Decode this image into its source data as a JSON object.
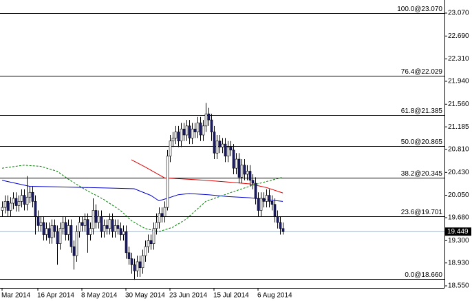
{
  "chart_data": {
    "type": "candlestick",
    "categories": [
      "Mar 2014",
      null,
      null,
      null,
      null,
      null,
      null,
      null,
      null,
      null,
      null,
      null,
      null,
      "16 Apr 2014",
      null,
      null,
      null,
      null,
      null,
      null,
      null,
      null,
      null,
      null,
      null,
      null,
      null,
      null,
      null,
      "8 May 2014",
      null,
      null,
      null,
      null,
      null,
      null,
      null,
      null,
      null,
      null,
      null,
      null,
      null,
      null,
      null,
      "30 May 2014",
      null,
      null,
      null,
      null,
      null,
      null,
      null,
      null,
      null,
      null,
      null,
      null,
      null,
      null,
      null,
      "23 Jun 2014",
      null,
      null,
      null,
      null,
      null,
      null,
      null,
      null,
      null,
      null,
      null,
      null,
      null,
      null,
      null,
      "15 Jul 2014",
      null,
      null,
      null,
      null,
      null,
      null,
      null,
      null,
      null,
      null,
      null,
      null,
      null,
      null,
      null,
      "6 Aug 2014",
      null,
      null,
      null,
      null,
      null,
      null,
      null,
      null,
      null
    ],
    "open": [
      19.8,
      19.85,
      19.95,
      19.8,
      19.92,
      20.0,
      19.88,
      19.95,
      20.05,
      19.9,
      20.02,
      20.1,
      19.95,
      19.7,
      19.55,
      19.6,
      19.4,
      19.5,
      19.35,
      19.55,
      19.45,
      19.25,
      19.5,
      19.6,
      19.4,
      19.55,
      19.2,
      19.05,
      19.45,
      19.6,
      19.55,
      19.65,
      19.4,
      19.5,
      19.8,
      19.6,
      19.7,
      19.45,
      19.55,
      19.5,
      19.65,
      19.45,
      19.55,
      19.5,
      19.4,
      19.45,
      19.1,
      19.0,
      18.9,
      18.8,
      18.95,
      18.85,
      19.05,
      19.2,
      19.3,
      19.25,
      19.5,
      19.6,
      19.75,
      19.7,
      19.85,
      20.7,
      20.95,
      21.0,
      21.1,
      20.95,
      21.15,
      21.05,
      21.2,
      21.0,
      21.15,
      21.1,
      21.25,
      21.05,
      21.2,
      21.4,
      21.3,
      21.1,
      20.75,
      20.95,
      20.85,
      20.9,
      20.7,
      20.85,
      20.8,
      20.5,
      20.65,
      20.35,
      20.55,
      20.4,
      20.45,
      20.3,
      20.25,
      20.0,
      19.8,
      20.0,
      19.95,
      20.05,
      19.95,
      19.9,
      19.7,
      19.6,
      19.5
    ],
    "high": [
      19.95,
      20.05,
      20.05,
      20.02,
      20.1,
      20.1,
      20.05,
      20.15,
      20.15,
      20.37,
      20.2,
      20.2,
      20.05,
      19.8,
      19.7,
      19.7,
      19.6,
      19.6,
      19.65,
      19.65,
      19.55,
      19.6,
      19.7,
      19.7,
      19.65,
      19.65,
      19.3,
      19.55,
      19.7,
      19.7,
      19.75,
      19.75,
      19.6,
      20.0,
      19.9,
      19.8,
      19.8,
      19.65,
      19.65,
      19.75,
      19.75,
      19.65,
      19.65,
      19.6,
      19.55,
      19.55,
      19.2,
      19.1,
      19.0,
      19.05,
      19.05,
      19.15,
      19.3,
      19.4,
      19.4,
      19.6,
      19.75,
      19.85,
      19.85,
      19.95,
      20.8,
      21.05,
      21.1,
      21.2,
      21.2,
      21.25,
      21.25,
      21.3,
      21.3,
      21.25,
      21.25,
      21.35,
      21.35,
      21.3,
      21.58,
      21.5,
      21.4,
      21.2,
      21.05,
      21.05,
      21.0,
      21.0,
      20.95,
      20.95,
      20.9,
      20.75,
      20.75,
      20.65,
      20.65,
      20.55,
      20.55,
      20.4,
      20.35,
      20.1,
      20.1,
      20.1,
      20.15,
      20.15,
      20.05,
      20.0,
      19.8,
      19.7,
      19.6
    ],
    "low": [
      19.7,
      19.75,
      19.7,
      19.7,
      19.82,
      19.78,
      19.78,
      19.85,
      19.8,
      19.8,
      19.92,
      19.85,
      19.4,
      19.45,
      19.45,
      19.3,
      19.3,
      19.25,
      19.25,
      19.35,
      18.9,
      19.15,
      19.4,
      19.3,
      19.3,
      19.1,
      18.82,
      18.95,
      19.35,
      19.45,
      19.45,
      19.1,
      19.3,
      19.4,
      19.5,
      19.5,
      19.35,
      19.35,
      19.4,
      19.4,
      19.35,
      19.35,
      19.4,
      19.3,
      19.3,
      19.0,
      18.9,
      18.75,
      18.65,
      18.7,
      18.7,
      18.75,
      18.95,
      19.1,
      19.15,
      19.15,
      19.4,
      19.5,
      19.6,
      19.6,
      19.8,
      20.6,
      20.85,
      20.9,
      20.85,
      20.85,
      20.95,
      20.95,
      20.9,
      20.9,
      21.0,
      21.0,
      20.95,
      20.95,
      21.1,
      21.2,
      20.95,
      20.65,
      20.65,
      20.75,
      20.75,
      20.6,
      20.6,
      20.7,
      20.4,
      20.4,
      20.25,
      20.25,
      20.3,
      20.3,
      20.2,
      20.15,
      19.9,
      19.7,
      19.7,
      19.85,
      19.85,
      19.85,
      19.8,
      19.6,
      19.5,
      19.4,
      19.4
    ],
    "close": [
      19.85,
      19.95,
      19.8,
      19.92,
      20.0,
      19.88,
      19.95,
      20.05,
      19.9,
      20.02,
      20.1,
      19.95,
      19.7,
      19.55,
      19.6,
      19.4,
      19.5,
      19.35,
      19.55,
      19.45,
      19.25,
      19.5,
      19.6,
      19.4,
      19.55,
      19.2,
      19.05,
      19.45,
      19.6,
      19.55,
      19.65,
      19.4,
      19.5,
      19.8,
      19.6,
      19.7,
      19.45,
      19.55,
      19.5,
      19.65,
      19.45,
      19.55,
      19.5,
      19.4,
      19.45,
      19.1,
      19.0,
      18.9,
      18.8,
      18.95,
      18.85,
      19.05,
      19.2,
      19.3,
      19.25,
      19.5,
      19.6,
      19.75,
      19.7,
      19.85,
      20.7,
      20.95,
      21.0,
      21.1,
      20.95,
      21.15,
      21.05,
      21.2,
      21.0,
      21.15,
      21.1,
      21.25,
      21.05,
      21.2,
      21.4,
      21.3,
      21.1,
      20.75,
      20.95,
      20.85,
      20.9,
      20.7,
      20.85,
      20.8,
      20.5,
      20.65,
      20.35,
      20.55,
      20.4,
      20.45,
      20.3,
      20.25,
      20.0,
      19.8,
      20.0,
      19.95,
      20.05,
      19.95,
      19.9,
      19.7,
      19.6,
      19.5,
      19.449
    ],
    "up_color": "#ffffff",
    "down_color": "#1c1c70",
    "edge_color": "#000000",
    "lines": [
      {
        "color": "#0000cc",
        "dashed": false,
        "x": [
          0,
          5,
          10,
          20,
          30,
          40,
          48,
          54,
          57,
          60,
          64,
          68,
          75,
          82,
          90,
          96,
          102
        ],
        "values": [
          20.3,
          20.25,
          20.2,
          20.19,
          20.18,
          20.17,
          20.16,
          20.05,
          19.96,
          20.0,
          20.06,
          20.08,
          20.06,
          20.03,
          20.01,
          19.98,
          19.95
        ]
      },
      {
        "color": "#e00000",
        "dashed": false,
        "x": [
          47,
          52,
          59,
          66,
          74,
          82,
          90,
          96,
          102
        ],
        "values": [
          20.64,
          20.52,
          20.34,
          20.32,
          20.3,
          20.27,
          20.24,
          20.18,
          20.09
        ]
      },
      {
        "color": "#008000",
        "dashed": true,
        "x": [
          0,
          8,
          14,
          20,
          24,
          30,
          37,
          43,
          47,
          52,
          57,
          62,
          67,
          74,
          84,
          92,
          102
        ],
        "values": [
          20.5,
          20.55,
          20.53,
          20.45,
          20.32,
          20.15,
          19.98,
          19.8,
          19.63,
          19.5,
          19.45,
          19.52,
          19.66,
          19.95,
          20.11,
          20.23,
          20.35
        ]
      }
    ],
    "levels": [
      {
        "value": 23.07,
        "label": "100.0@23.070"
      },
      {
        "value": 22.029,
        "label": "76.4@22.029"
      },
      {
        "value": 21.385,
        "label": "61.8@21.385"
      },
      {
        "value": 20.865,
        "label": "50.0@20.865"
      },
      {
        "value": 20.345,
        "label": "38.2@20.345"
      },
      {
        "value": 19.701,
        "label": "23.6@19.701"
      },
      {
        "value": 18.66,
        "label": "0.0@18.660"
      }
    ],
    "last_price": 19.449,
    "ylim": [
      18.516,
      23.287
    ],
    "yticks": [
      {
        "value": 23.07,
        "label": "23.070"
      },
      {
        "value": 22.69,
        "label": "22.690"
      },
      {
        "value": 22.31,
        "label": "22.310"
      },
      {
        "value": 21.94,
        "label": "21.940"
      },
      {
        "value": 21.56,
        "label": "21.560"
      },
      21.185,
      {
        "value": 20.81,
        "label": "20.810"
      },
      {
        "value": 20.43,
        "label": "20.430"
      },
      {
        "value": 20.05,
        "label": "20.050"
      },
      {
        "value": 19.68,
        "label": "19.680"
      },
      {
        "value": 19.3,
        "label": "19.300"
      },
      {
        "value": 18.93,
        "label": "18.930"
      },
      {
        "value": 18.55,
        "label": "18.550"
      }
    ]
  }
}
